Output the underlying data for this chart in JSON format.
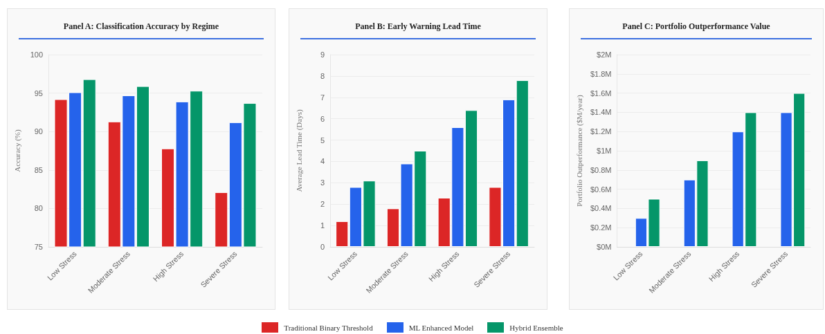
{
  "chart_data": [
    {
      "type": "bar",
      "title": "Panel A: Classification Accuracy by Regime",
      "ylabel": "Accuracy (%)",
      "categories": [
        "Low Stress",
        "Moderate Stress",
        "High Stress",
        "Severe Stress"
      ],
      "series": [
        {
          "name": "Traditional Binary Threshold",
          "color": "#dc2626",
          "values": [
            94.2,
            91.3,
            87.8,
            82.1
          ]
        },
        {
          "name": "ML Enhanced Model",
          "color": "#2563eb",
          "values": [
            95.1,
            94.7,
            93.9,
            91.2
          ]
        },
        {
          "name": "Hybrid Ensemble",
          "color": "#059669",
          "values": [
            96.8,
            95.9,
            95.3,
            93.7
          ]
        }
      ],
      "ylim": [
        75,
        100
      ],
      "yticks": [
        75,
        80,
        85,
        90,
        95,
        100
      ],
      "grid": "y",
      "legend": "bottom"
    },
    {
      "type": "bar",
      "title": "Panel B: Early Warning Lead Time",
      "ylabel": "Average Lead Time (Days)",
      "categories": [
        "Low Stress",
        "Moderate Stress",
        "High Stress",
        "Severe Stress"
      ],
      "series": [
        {
          "color": "#dc2626",
          "values": [
            1.2,
            1.8,
            2.3,
            2.8
          ]
        },
        {
          "color": "#2563eb",
          "values": [
            2.8,
            3.9,
            5.6,
            6.9
          ]
        },
        {
          "color": "#059669",
          "values": [
            3.1,
            4.5,
            6.4,
            7.8
          ]
        }
      ],
      "ylim": [
        0,
        9
      ],
      "yticks": [
        0,
        1,
        2,
        3,
        4,
        5,
        6,
        7,
        8,
        9
      ],
      "grid": "y"
    },
    {
      "type": "bar",
      "title": "Panel C: Portfolio Outperformance Value",
      "ylabel": "Portfolio Outperformance ($M/year)",
      "categories": [
        "Low Stress",
        "Moderate Stress",
        "High Stress",
        "Severe Stress"
      ],
      "series": [
        {
          "color": "#dc2626",
          "values": [
            null,
            null,
            null,
            null
          ]
        },
        {
          "color": "#2563eb",
          "values": [
            0.3,
            0.7,
            1.2,
            1.4
          ]
        },
        {
          "color": "#059669",
          "values": [
            0.5,
            0.9,
            1.4,
            1.6
          ]
        }
      ],
      "ylim": [
        0,
        2
      ],
      "yticks": [
        {
          "value": 0,
          "label": "$0M"
        },
        {
          "value": 0.2,
          "label": "$0.2M"
        },
        {
          "value": 0.4,
          "label": "$0.4M"
        },
        {
          "value": 0.6,
          "label": "$0.6M"
        },
        {
          "value": 0.8,
          "label": "$0.8M"
        },
        {
          "value": 1,
          "label": "$1M"
        },
        {
          "value": 1.2,
          "label": "$1.2M"
        },
        {
          "value": 1.4,
          "label": "$1.4M"
        },
        {
          "value": 1.6,
          "label": "$1.6M"
        },
        {
          "value": 1.8,
          "label": "$1.8M"
        },
        {
          "value": 2,
          "label": "$2M"
        }
      ],
      "grid": "y"
    }
  ]
}
